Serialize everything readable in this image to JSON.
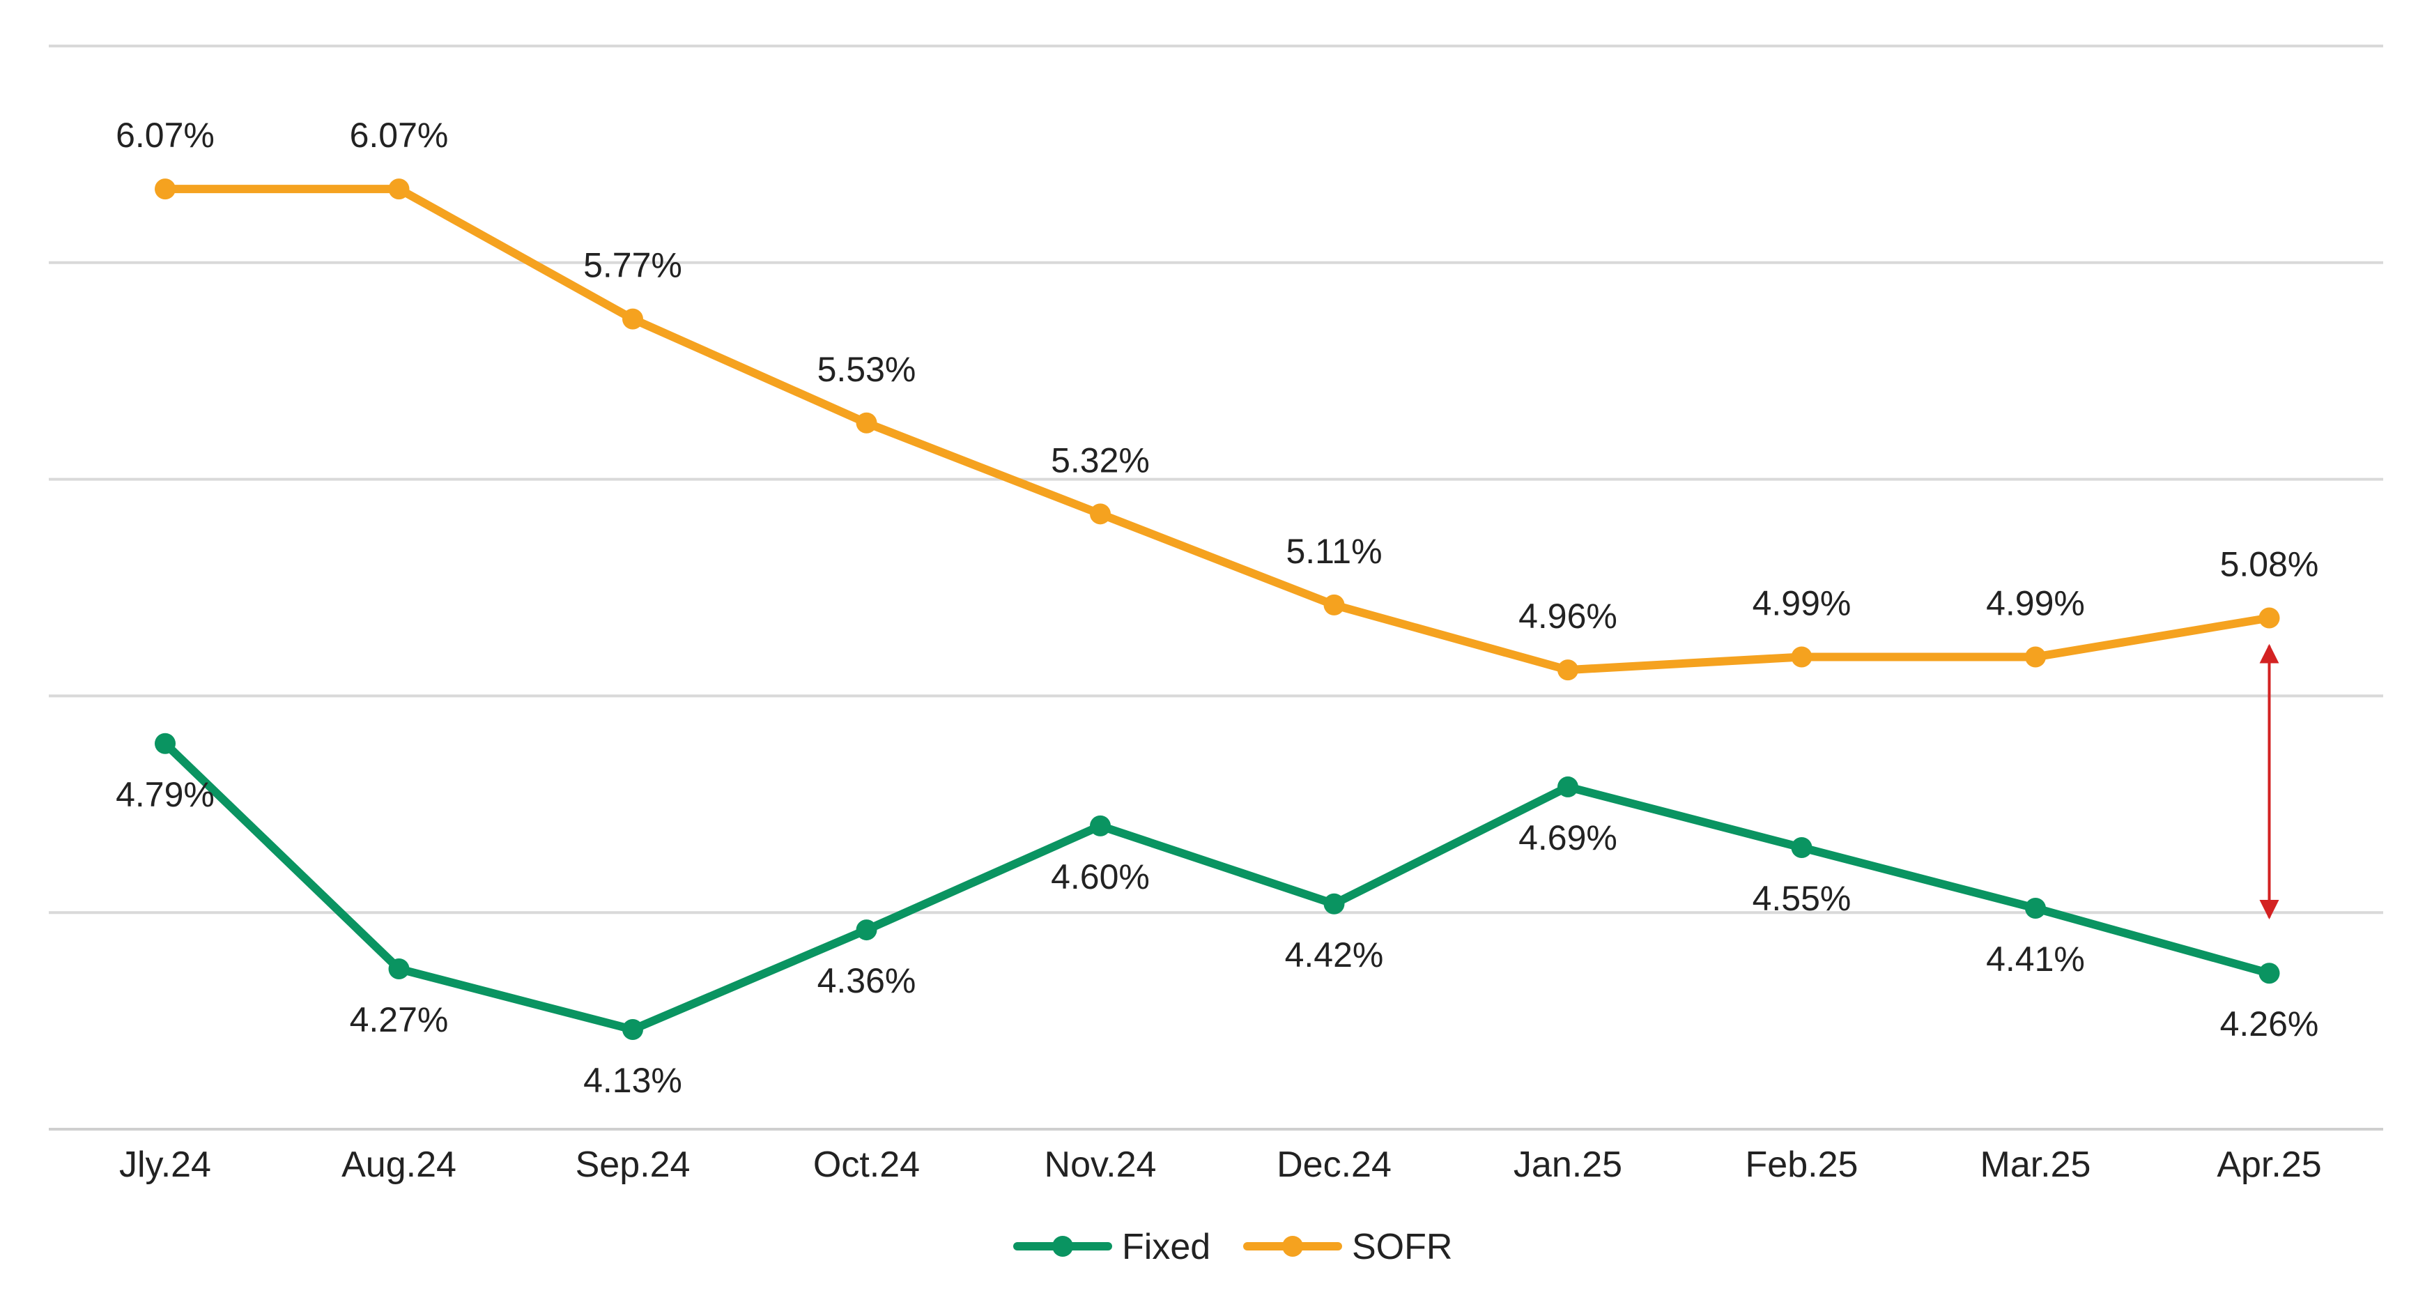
{
  "chart_data": {
    "type": "line",
    "title": "",
    "xlabel": "",
    "ylabel": "",
    "categories": [
      "Jly.24",
      "Aug.24",
      "Sep.24",
      "Oct.24",
      "Nov.24",
      "Dec.24",
      "Jan.25",
      "Feb.25",
      "Mar.25",
      "Apr.25"
    ],
    "ylim": [
      3.9,
      6.4
    ],
    "grid": true,
    "legend": "bottom-center",
    "series": [
      {
        "name": "Fixed",
        "color": "#0a9461",
        "values": [
          4.79,
          4.27,
          4.13,
          4.36,
          4.6,
          4.42,
          4.69,
          4.55,
          4.41,
          4.26
        ],
        "labels": [
          "4.79%",
          "4.27%",
          "4.13%",
          "4.36%",
          "4.60%",
          "4.42%",
          "4.69%",
          "4.55%",
          "4.41%",
          "4.26%"
        ]
      },
      {
        "name": "SOFR",
        "color": "#f5a21f",
        "values": [
          6.07,
          6.07,
          5.77,
          5.53,
          5.32,
          5.11,
          4.96,
          4.99,
          4.99,
          5.08
        ],
        "labels": [
          "6.07%",
          "6.07%",
          "5.77%",
          "5.53%",
          "5.32%",
          "5.11%",
          "4.96%",
          "4.99%",
          "4.99%",
          "5.08%"
        ]
      }
    ],
    "annotation": {
      "type": "double-arrow",
      "at_category": "Apr.25",
      "color": "#d32222"
    }
  }
}
